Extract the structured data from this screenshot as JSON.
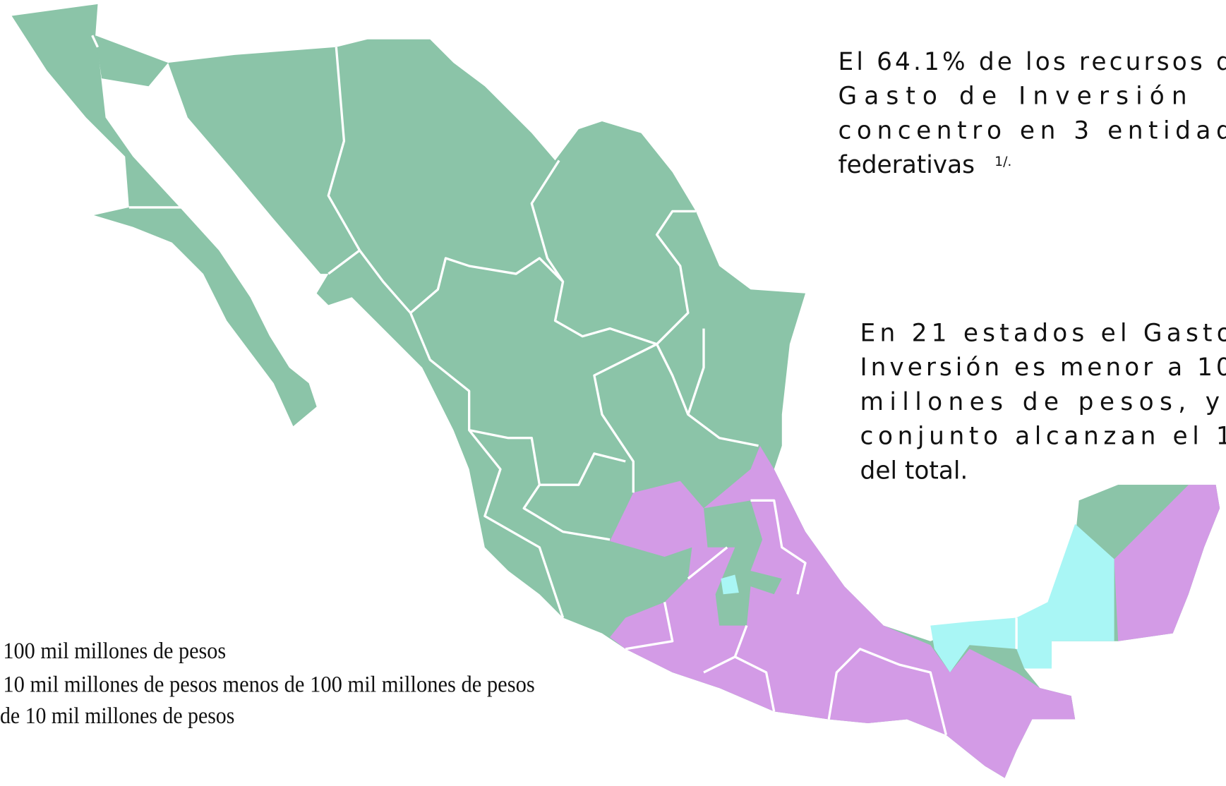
{
  "annotations": [
    {
      "lines": [
        "El 64.1% de los recursos d",
        "Gasto de Inversión",
        "concentro en 3 entidad",
        "federativas"
      ],
      "superscript": "1/."
    },
    {
      "lines": [
        "En 21 estados el Gasto",
        "Inversión es menor a 10",
        "millones de pesos, y",
        "conjunto alcanzan el 1",
        "del total."
      ]
    }
  ],
  "legend": {
    "items": [
      "100 mil millones de pesos",
      "10 mil millones de pesos menos de 100 mil millones de pesos",
      "de 10 mil millones de pesos"
    ]
  }
}
